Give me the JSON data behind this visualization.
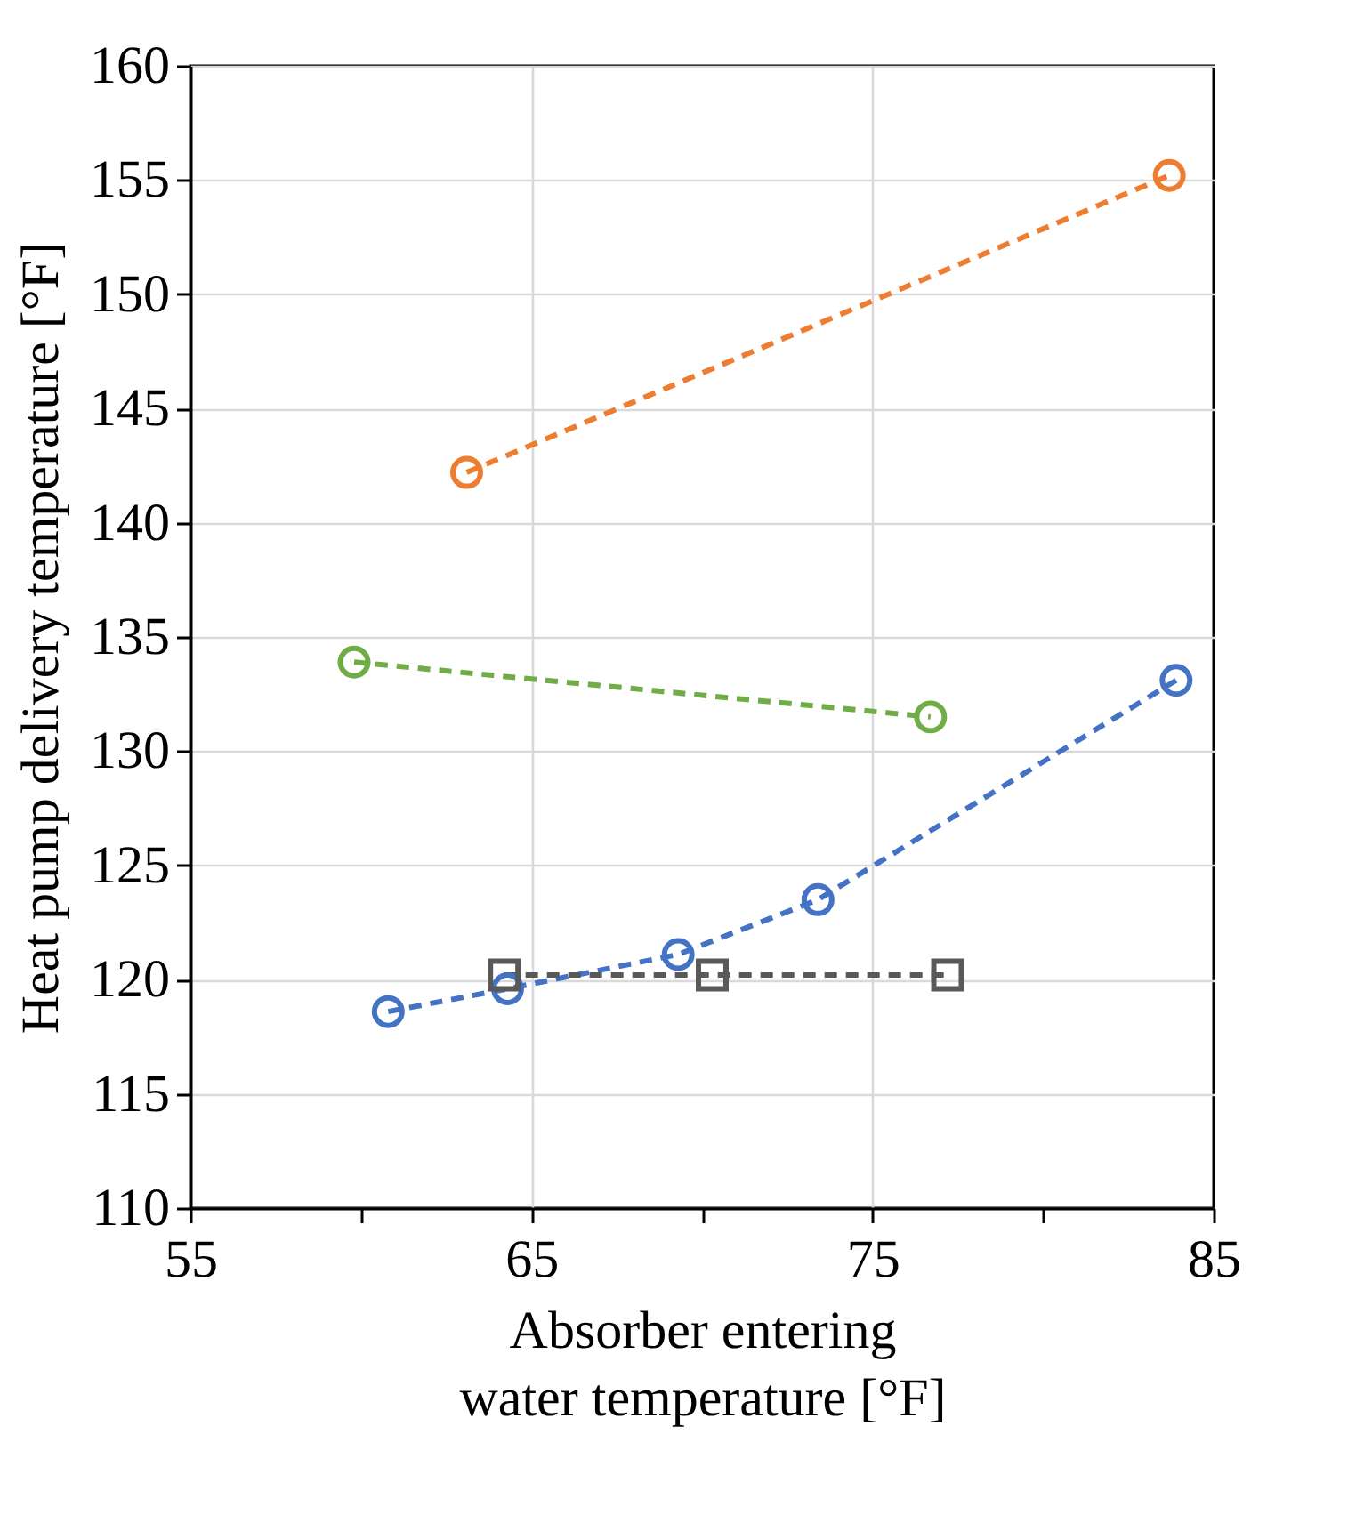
{
  "chart_data": {
    "type": "line",
    "xlabel": "Absorber entering water temperature [°F]",
    "ylabel": "Heat pump delivery temperature [°F]",
    "xlim": [
      55,
      85
    ],
    "xticks": [
      55,
      {
        "value": 60,
        "label": null
      },
      65,
      {
        "value": 70,
        "label": null
      },
      75,
      {
        "value": 80,
        "label": null
      },
      85
    ],
    "ylim": [
      110,
      160
    ],
    "yticks": [
      110,
      115,
      120,
      125,
      130,
      135,
      140,
      145,
      150,
      155,
      160
    ],
    "grid": true,
    "line_style": "dashed",
    "legend": false,
    "series": [
      {
        "color": "#ed7d31",
        "marker": "circle",
        "x": [
          63.1,
          83.7
        ],
        "values": [
          142.2,
          155.2
        ]
      },
      {
        "color": "#70ad47",
        "marker": "circle",
        "x": [
          59.8,
          76.7
        ],
        "values": [
          133.9,
          131.5
        ]
      },
      {
        "color": "#4472c4",
        "marker": "circle",
        "x": [
          60.8,
          64.3,
          69.3,
          73.4,
          83.9
        ],
        "values": [
          118.6,
          119.6,
          121.1,
          123.5,
          133.1
        ]
      },
      {
        "color": "#595959",
        "marker": "square",
        "x": [
          64.2,
          70.3,
          77.2
        ],
        "values": [
          120.2,
          120.2,
          120.2
        ]
      }
    ]
  }
}
